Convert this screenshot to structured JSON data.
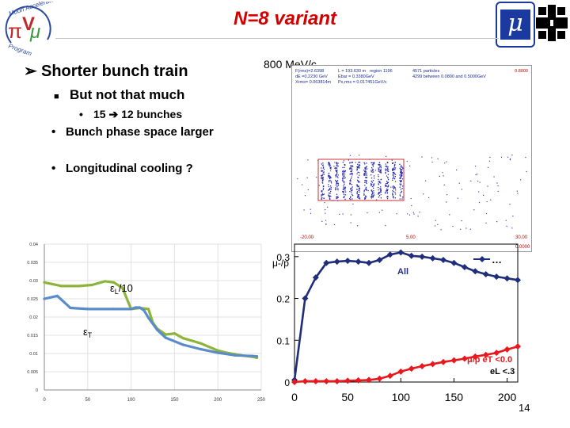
{
  "logos": {
    "mac_text": "Muon Accelerator Program",
    "mu_symbol": "μ"
  },
  "slide": {
    "title": "N=8 variant",
    "bullet1": "Shorter bunch train",
    "bullet2": "But not that much",
    "bullet3_count_from": "15",
    "bullet3_count_to": "12 bunches",
    "bullet4": "Bunch phase space larger",
    "bullet5": "Longitudinal cooling ?",
    "energy_label": "800 MeV/c",
    "page_number": "14"
  },
  "phase_space_plot": {
    "info": {
      "region": "region 1196",
      "particles": "4571 particles",
      "f": "F(rms)=2.6398",
      "l": "L = 193.630 m",
      "between": "4299 between 0.0800 and 0.5000GeV",
      "de": "dE =0.2230 GeV",
      "ebar": "Ebar = 0.3380GeV",
      "xrms": "Xrms= 0.063814m",
      "px": "Px,rms = 0.017451GeV/c",
      "ytop": "0.8000"
    },
    "x_ticks": [
      "-20.00",
      "5.00",
      "30.00"
    ],
    "ybottom": "0.0000"
  },
  "chart_data": [
    {
      "type": "line",
      "x_ticks": [
        "0",
        "50",
        "100",
        "150",
        "200",
        "250"
      ],
      "y_ticks": [
        "0",
        "0.005",
        "0.01",
        "0.015",
        "0.02",
        "0.025",
        "0.03",
        "0.035",
        "0.04"
      ],
      "xlim": [
        0,
        250
      ],
      "ylim": [
        0,
        0.04
      ],
      "annotations": [
        "εL/10",
        "εT"
      ],
      "grid": true,
      "series": [
        {
          "color": "#8db43a",
          "x": [
            0,
            20,
            40,
            55,
            70,
            80,
            90,
            100,
            110,
            120,
            125,
            130,
            140,
            150,
            160,
            170,
            180,
            190,
            200,
            210,
            220,
            230,
            240,
            245
          ],
          "y": [
            0.0295,
            0.0285,
            0.0285,
            0.0288,
            0.0298,
            0.0295,
            0.028,
            0.0222,
            0.0225,
            0.0222,
            0.0185,
            0.0168,
            0.0152,
            0.0155,
            0.0142,
            0.0135,
            0.0128,
            0.0118,
            0.0108,
            0.0102,
            0.0098,
            0.0094,
            0.0091,
            0.0088
          ]
        },
        {
          "color": "#5a8cc8",
          "x": [
            0,
            15,
            30,
            50,
            80,
            100,
            105,
            110,
            115,
            120,
            130,
            140,
            160,
            180,
            200,
            220,
            240,
            245
          ],
          "y": [
            0.025,
            0.0258,
            0.0225,
            0.0222,
            0.0222,
            0.0222,
            0.0226,
            0.0226,
            0.0218,
            0.0198,
            0.0165,
            0.0143,
            0.0124,
            0.0112,
            0.0102,
            0.0095,
            0.0093,
            0.0092
          ]
        }
      ]
    },
    {
      "type": "line",
      "x_ticks": [
        "0",
        "50",
        "100",
        "150",
        "200"
      ],
      "y_ticks": [
        "0",
        "0.1",
        "0.2",
        "0.3"
      ],
      "xlim": [
        0,
        210
      ],
      "ylim": [
        0,
        0.33
      ],
      "ylabel": "μ-/p",
      "annotations": [
        "All",
        "μ/p eT <0.0",
        "eL <.3"
      ],
      "legend_text": "…",
      "legend_position": "top-right",
      "grid": false,
      "series": [
        {
          "color": "#1f2d7a",
          "x": [
            0,
            10,
            20,
            30,
            40,
            50,
            60,
            70,
            80,
            90,
            100,
            110,
            120,
            130,
            140,
            150,
            160,
            170,
            180,
            190,
            200,
            210
          ],
          "y": [
            0.005,
            0.2,
            0.25,
            0.285,
            0.288,
            0.29,
            0.288,
            0.285,
            0.292,
            0.305,
            0.31,
            0.302,
            0.3,
            0.296,
            0.292,
            0.285,
            0.275,
            0.265,
            0.258,
            0.252,
            0.248,
            0.244
          ]
        },
        {
          "color": "#e8181c",
          "x": [
            0,
            10,
            20,
            30,
            40,
            50,
            60,
            70,
            80,
            90,
            100,
            110,
            120,
            130,
            140,
            150,
            160,
            170,
            180,
            190,
            200,
            210
          ],
          "y": [
            0.0,
            0.002,
            0.002,
            0.002,
            0.002,
            0.003,
            0.004,
            0.005,
            0.008,
            0.015,
            0.025,
            0.032,
            0.038,
            0.043,
            0.048,
            0.052,
            0.056,
            0.061,
            0.065,
            0.07,
            0.078,
            0.085
          ]
        }
      ]
    }
  ]
}
